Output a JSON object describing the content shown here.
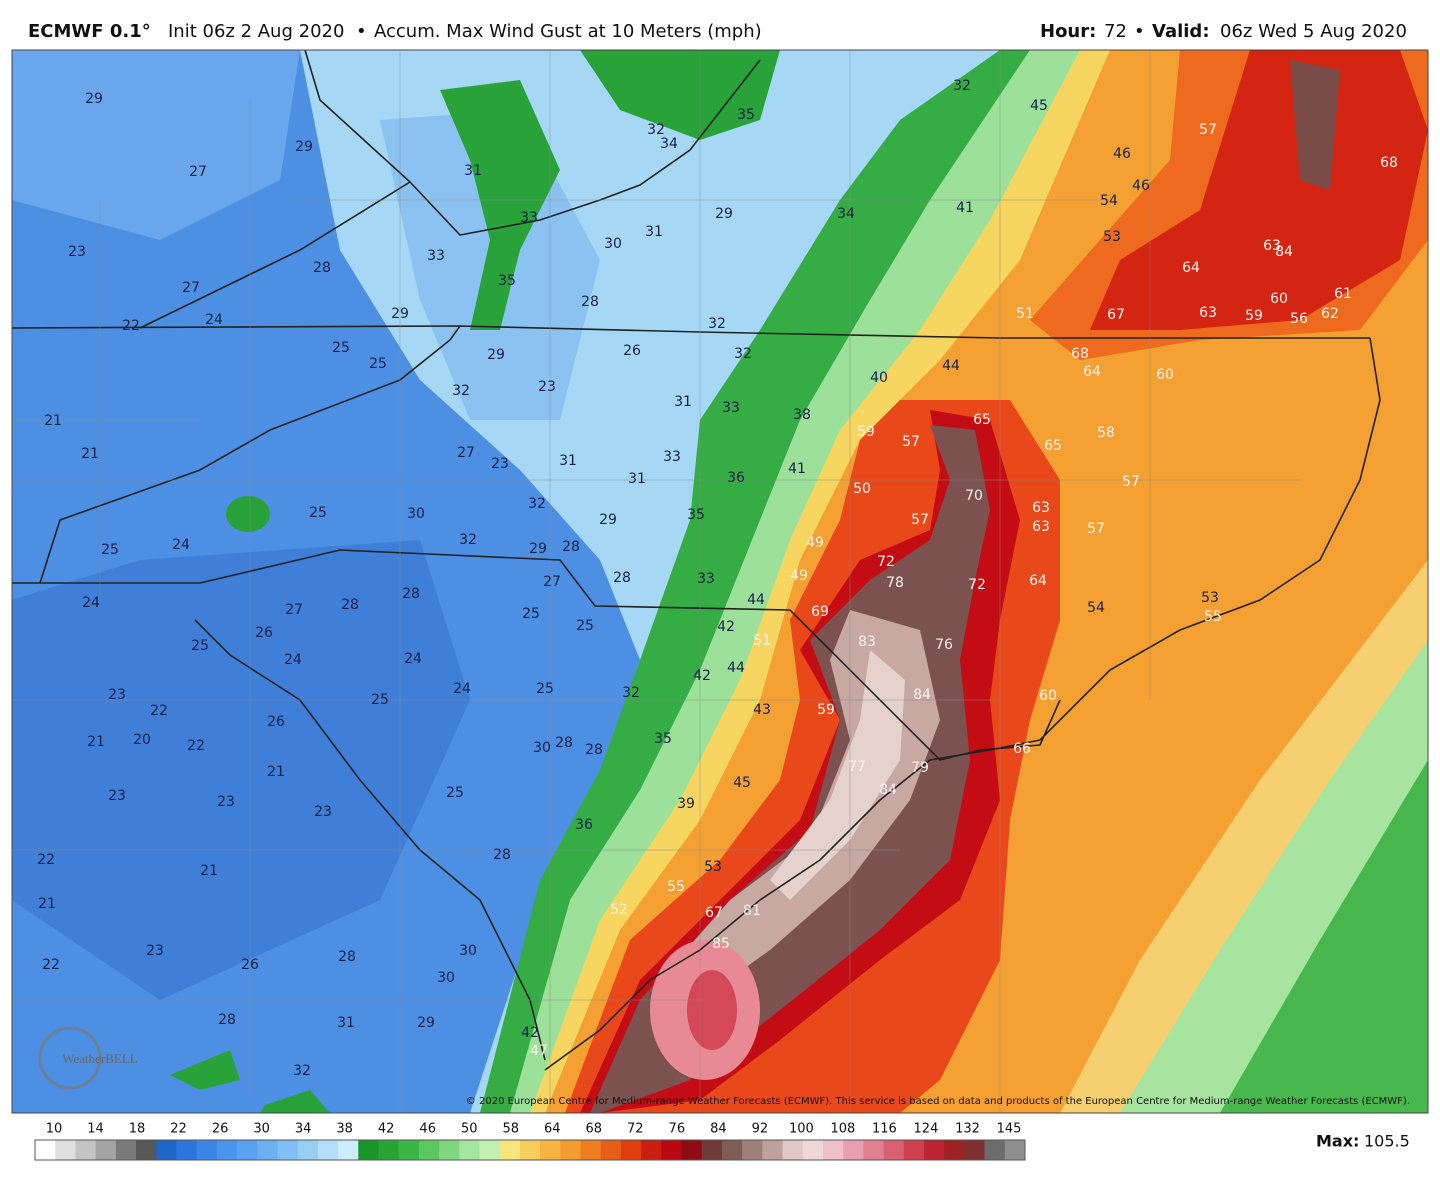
{
  "header": {
    "model": "ECMWF 0.1°",
    "init": "Init 06z 2 Aug 2020",
    "separator": "•",
    "product": "Accum. Max Wind Gust at 10 Meters (mph)",
    "hour_label": "Hour:",
    "hour": "72",
    "valid_label": "Valid:",
    "valid": "06z Wed 5 Aug 2020"
  },
  "map": {
    "labels": [
      29,
      27,
      29,
      31,
      23,
      28,
      33,
      27,
      24,
      22,
      29,
      30,
      31,
      29,
      28,
      32,
      26,
      32,
      25,
      25,
      29,
      32,
      23,
      31,
      33,
      21,
      21,
      27,
      23,
      31,
      31,
      33,
      25,
      30,
      32,
      29,
      32,
      29,
      28,
      27,
      28,
      25,
      24,
      24,
      27,
      28,
      28,
      25,
      25,
      26,
      25,
      24,
      24,
      24,
      25,
      32,
      25,
      23,
      22,
      26,
      21,
      20,
      22,
      21,
      30,
      28,
      28,
      23,
      23,
      23,
      25,
      22,
      21,
      28,
      21,
      23,
      22,
      26,
      28,
      30,
      30,
      28,
      31,
      29,
      32,
      35,
      32,
      34,
      33,
      35,
      34,
      32,
      45,
      41,
      46,
      46,
      54,
      53,
      57,
      51,
      67,
      63,
      59,
      56,
      62,
      61,
      60,
      64,
      68,
      64,
      60,
      40,
      44,
      38,
      65,
      59,
      57,
      65,
      58,
      41,
      36,
      50,
      70,
      57,
      63,
      63,
      57,
      57,
      35,
      49,
      72,
      78,
      72,
      49,
      33,
      44,
      64,
      54,
      53,
      55,
      69,
      42,
      51,
      83,
      76,
      44,
      42,
      84,
      60,
      43,
      59,
      35,
      77,
      79,
      66,
      45,
      84,
      39,
      36,
      53,
      55,
      52,
      67,
      81,
      85,
      42,
      47,
      68,
      84,
      63
    ],
    "logo": "WeatherBELL",
    "copyright": "© 2020 European Centre for Medium-range Weather Forecasts (ECMWF). This service is based on data and products of the European Centre for Medium-range Weather Forecasts (ECMWF)."
  },
  "colorbar": {
    "ticks": [
      10,
      14,
      18,
      22,
      26,
      30,
      34,
      38,
      42,
      46,
      50,
      58,
      64,
      68,
      72,
      76,
      84,
      92,
      100,
      108,
      116,
      124,
      132,
      145
    ],
    "colors": [
      "#ffffff",
      "#e0e0e0",
      "#c4c4c4",
      "#a4a4a4",
      "#7a7a7a",
      "#585858",
      "#1e66c8",
      "#2b76dc",
      "#3a86e6",
      "#4a94ec",
      "#5aa2f0",
      "#6cb0f2",
      "#80bef4",
      "#98cef6",
      "#b2defa",
      "#cceefc",
      "#1a9428",
      "#28a436",
      "#3ab646",
      "#5cc660",
      "#80d680",
      "#a2e6a0",
      "#c2f0b4",
      "#f6e67c",
      "#f6cc5c",
      "#f6b440",
      "#f49c30",
      "#ee7e20",
      "#e65e18",
      "#de3e10",
      "#cc1e10",
      "#b80812",
      "#900c14",
      "#6e3c38",
      "#805c58",
      "#a07e7a",
      "#c0a09c",
      "#e0c8c6",
      "#f0d8d8",
      "#f0c0c8",
      "#e8a0b0",
      "#e08090",
      "#d86070",
      "#d04050",
      "#bc2434",
      "#9e2222",
      "#7e3030",
      "#6c6c6c",
      "#8e8e8e"
    ]
  },
  "max_label": "Max:",
  "max": 105.5
}
